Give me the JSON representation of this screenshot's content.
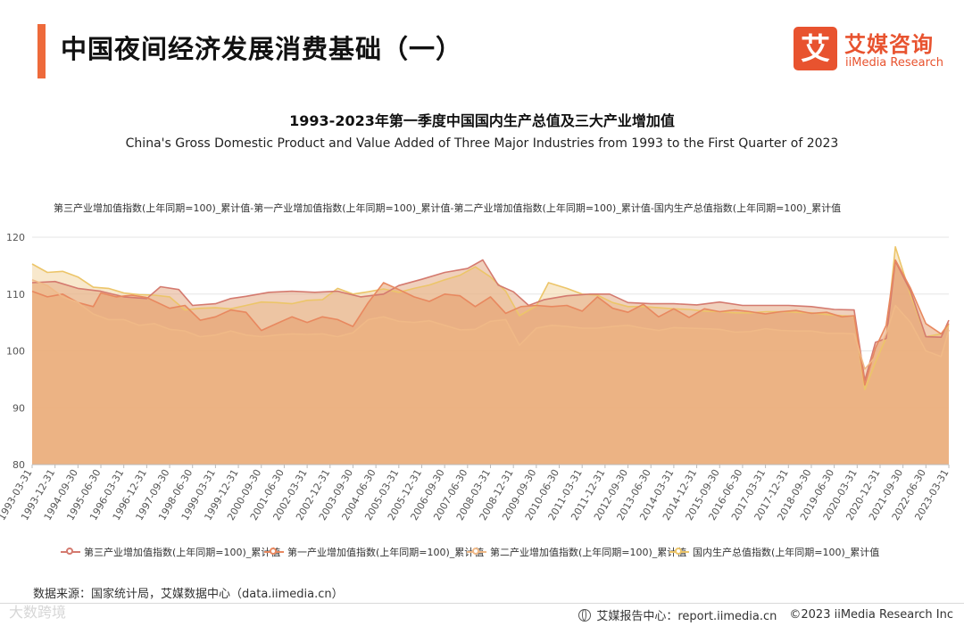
{
  "header": {
    "title": "中国夜间经济发展消费基础（一）",
    "logo_char": "艾",
    "logo_cn": "艾媒咨询",
    "logo_en": "iiMedia Research",
    "brand_color": "#e8532f"
  },
  "chart_data": {
    "type": "area",
    "title": "1993-2023年第一季度中国国内生产总值及三大产业增加值",
    "subtitle": "China's Gross Domestic Product and Value Added of Three Major Industries from 1993 to the First Quarter of 2023",
    "series_header": "第三产业增加值指数(上年同期=100)_累计值-第一产业增加值指数(上年同期=100)_累计值-第二产业增加值指数(上年同期=100)_累计值-国内生产总值指数(上年同期=100)_累计值",
    "ylim": [
      80,
      120
    ],
    "yticks": [
      80,
      90,
      100,
      110,
      120
    ],
    "xlim": [
      1993.0,
      2023.0
    ],
    "grid": true,
    "legend_position": "bottom",
    "x_tick_labels": [
      "1993-03-31",
      "1993-12-31",
      "1994-09-30",
      "1995-06-30",
      "1996-03-31",
      "1996-12-31",
      "1997-09-30",
      "1998-06-30",
      "1999-03-31",
      "1999-12-31",
      "2000-09-30",
      "2001-06-30",
      "2002-03-31",
      "2002-12-31",
      "2003-09-30",
      "2004-06-30",
      "2005-03-31",
      "2005-12-31",
      "2006-09-30",
      "2007-06-30",
      "2008-03-31",
      "2008-12-31",
      "2009-09-30",
      "2010-06-30",
      "2011-03-31",
      "2011-12-31",
      "2012-09-30",
      "2013-06-30",
      "2014-03-31",
      "2014-12-31",
      "2015-09-30",
      "2016-06-30",
      "2017-03-31",
      "2017-12-31",
      "2018-09-30",
      "2019-06-30",
      "2020-03-31",
      "2020-12-31",
      "2021-09-30",
      "2022-06-30",
      "2023-03-31"
    ],
    "series": [
      {
        "name": "第三产业增加值指数(上年同期=100)_累计值",
        "color": "#d47a6f",
        "points": [
          [
            1993.0,
            112.0
          ],
          [
            1993.75,
            112.2
          ],
          [
            1994.5,
            111.0
          ],
          [
            1995.25,
            110.5
          ],
          [
            1996.0,
            109.5
          ],
          [
            1996.75,
            109.2
          ],
          [
            1997.2,
            111.3
          ],
          [
            1997.8,
            110.8
          ],
          [
            1998.25,
            108.0
          ],
          [
            1999.0,
            108.3
          ],
          [
            1999.5,
            109.2
          ],
          [
            2000.0,
            109.6
          ],
          [
            2000.75,
            110.3
          ],
          [
            2001.5,
            110.5
          ],
          [
            2002.25,
            110.3
          ],
          [
            2003.0,
            110.5
          ],
          [
            2003.75,
            109.5
          ],
          [
            2004.5,
            110.0
          ],
          [
            2005.0,
            111.5
          ],
          [
            2005.75,
            112.6
          ],
          [
            2006.5,
            113.8
          ],
          [
            2007.25,
            114.5
          ],
          [
            2007.75,
            116.0
          ],
          [
            2008.25,
            111.6
          ],
          [
            2008.75,
            110.4
          ],
          [
            2009.25,
            108.0
          ],
          [
            2009.75,
            109.0
          ],
          [
            2010.5,
            109.7
          ],
          [
            2011.25,
            110.0
          ],
          [
            2011.9,
            110.0
          ],
          [
            2012.5,
            108.5
          ],
          [
            2013.25,
            108.3
          ],
          [
            2014.0,
            108.3
          ],
          [
            2014.75,
            108.1
          ],
          [
            2015.5,
            108.6
          ],
          [
            2016.25,
            108.0
          ],
          [
            2017.0,
            108.0
          ],
          [
            2017.75,
            108.0
          ],
          [
            2018.5,
            107.8
          ],
          [
            2019.25,
            107.3
          ],
          [
            2019.9,
            107.2
          ],
          [
            2020.25,
            94.8
          ],
          [
            2020.6,
            101.5
          ],
          [
            2020.95,
            102.2
          ],
          [
            2021.25,
            115.8
          ],
          [
            2021.75,
            110.5
          ],
          [
            2022.25,
            102.5
          ],
          [
            2022.75,
            102.4
          ],
          [
            2023.0,
            105.4
          ]
        ]
      },
      {
        "name": "第一产业增加值指数(上年同期=100)_累计值",
        "color": "#e8885f",
        "points": [
          [
            1993.0,
            110.5
          ],
          [
            1993.5,
            109.5
          ],
          [
            1994.0,
            110.0
          ],
          [
            1994.5,
            108.5
          ],
          [
            1995.0,
            107.8
          ],
          [
            1995.25,
            110.2
          ],
          [
            1995.75,
            109.5
          ],
          [
            1996.25,
            109.8
          ],
          [
            1996.75,
            109.4
          ],
          [
            1997.5,
            107.5
          ],
          [
            1998.0,
            108.0
          ],
          [
            1998.5,
            105.4
          ],
          [
            1999.0,
            106.0
          ],
          [
            1999.5,
            107.2
          ],
          [
            2000.0,
            106.8
          ],
          [
            2000.5,
            103.6
          ],
          [
            2001.0,
            104.8
          ],
          [
            2001.5,
            106.0
          ],
          [
            2002.0,
            105.0
          ],
          [
            2002.5,
            106.0
          ],
          [
            2003.0,
            105.5
          ],
          [
            2003.5,
            104.3
          ],
          [
            2004.0,
            108.5
          ],
          [
            2004.5,
            112.0
          ],
          [
            2005.0,
            110.8
          ],
          [
            2005.5,
            109.5
          ],
          [
            2006.0,
            108.7
          ],
          [
            2006.5,
            110.0
          ],
          [
            2007.0,
            109.7
          ],
          [
            2007.5,
            107.8
          ],
          [
            2008.0,
            109.5
          ],
          [
            2008.5,
            106.6
          ],
          [
            2009.0,
            107.8
          ],
          [
            2009.5,
            108.0
          ],
          [
            2010.0,
            107.8
          ],
          [
            2010.5,
            108.0
          ],
          [
            2011.0,
            107.0
          ],
          [
            2011.5,
            109.5
          ],
          [
            2012.0,
            107.5
          ],
          [
            2012.5,
            106.8
          ],
          [
            2013.0,
            108.2
          ],
          [
            2013.5,
            106.0
          ],
          [
            2014.0,
            107.4
          ],
          [
            2014.5,
            105.9
          ],
          [
            2015.0,
            107.4
          ],
          [
            2015.5,
            106.9
          ],
          [
            2016.0,
            107.2
          ],
          [
            2016.5,
            106.9
          ],
          [
            2017.0,
            106.5
          ],
          [
            2017.5,
            106.9
          ],
          [
            2018.0,
            107.1
          ],
          [
            2018.5,
            106.6
          ],
          [
            2019.0,
            106.8
          ],
          [
            2019.5,
            106.0
          ],
          [
            2019.9,
            106.2
          ],
          [
            2020.25,
            94.0
          ],
          [
            2020.6,
            100.5
          ],
          [
            2020.95,
            104.5
          ],
          [
            2021.25,
            116.0
          ],
          [
            2021.75,
            111.0
          ],
          [
            2022.25,
            104.8
          ],
          [
            2022.75,
            103.0
          ],
          [
            2023.0,
            104.8
          ]
        ]
      },
      {
        "name": "第二产业增加值指数(上年同期=100)_累计值",
        "color": "#f0b987",
        "points": [
          [
            1993.0,
            112.5
          ],
          [
            1993.5,
            111.5
          ],
          [
            1994.0,
            109.5
          ],
          [
            1994.5,
            108.5
          ],
          [
            1995.0,
            106.5
          ],
          [
            1995.5,
            105.5
          ],
          [
            1996.0,
            105.5
          ],
          [
            1996.5,
            104.5
          ],
          [
            1997.0,
            104.8
          ],
          [
            1997.5,
            103.8
          ],
          [
            1998.0,
            103.5
          ],
          [
            1998.5,
            102.5
          ],
          [
            1999.0,
            102.8
          ],
          [
            1999.5,
            103.5
          ],
          [
            2000.0,
            102.8
          ],
          [
            2000.5,
            102.5
          ],
          [
            2001.0,
            102.8
          ],
          [
            2001.5,
            103.0
          ],
          [
            2002.0,
            102.9
          ],
          [
            2002.5,
            103.0
          ],
          [
            2003.0,
            102.5
          ],
          [
            2003.5,
            103.2
          ],
          [
            2004.0,
            105.5
          ],
          [
            2004.5,
            106.0
          ],
          [
            2005.0,
            105.2
          ],
          [
            2005.5,
            105.0
          ],
          [
            2006.0,
            105.3
          ],
          [
            2006.5,
            104.5
          ],
          [
            2007.0,
            103.7
          ],
          [
            2007.5,
            103.8
          ],
          [
            2008.0,
            105.2
          ],
          [
            2008.5,
            105.5
          ],
          [
            2008.95,
            101.0
          ],
          [
            2009.5,
            104.0
          ],
          [
            2010.0,
            104.5
          ],
          [
            2010.5,
            104.3
          ],
          [
            2011.0,
            104.0
          ],
          [
            2011.5,
            104.0
          ],
          [
            2012.0,
            104.3
          ],
          [
            2012.5,
            104.5
          ],
          [
            2013.0,
            104.0
          ],
          [
            2013.5,
            103.6
          ],
          [
            2014.0,
            104.1
          ],
          [
            2014.5,
            104.0
          ],
          [
            2015.0,
            103.9
          ],
          [
            2015.5,
            103.8
          ],
          [
            2016.0,
            103.3
          ],
          [
            2016.5,
            103.4
          ],
          [
            2017.0,
            103.9
          ],
          [
            2017.5,
            103.6
          ],
          [
            2018.0,
            103.5
          ],
          [
            2018.5,
            103.5
          ],
          [
            2019.0,
            103.1
          ],
          [
            2019.5,
            103.1
          ],
          [
            2019.9,
            103.0
          ],
          [
            2020.25,
            96.8
          ],
          [
            2020.6,
            99.0
          ],
          [
            2020.95,
            103.0
          ],
          [
            2021.25,
            108.0
          ],
          [
            2021.75,
            105.0
          ],
          [
            2022.25,
            100.0
          ],
          [
            2022.75,
            99.0
          ],
          [
            2023.0,
            103.7
          ]
        ]
      },
      {
        "name": "国内生产总值指数(上年同期=100)_累计值",
        "color": "#ecc569",
        "points": [
          [
            1993.0,
            115.3
          ],
          [
            1993.5,
            113.8
          ],
          [
            1994.0,
            114.0
          ],
          [
            1994.5,
            113.0
          ],
          [
            1995.0,
            111.2
          ],
          [
            1995.5,
            111.0
          ],
          [
            1996.0,
            110.2
          ],
          [
            1996.5,
            109.9
          ],
          [
            1997.0,
            109.8
          ],
          [
            1997.5,
            109.5
          ],
          [
            1998.0,
            107.2
          ],
          [
            1998.5,
            107.5
          ],
          [
            1999.0,
            107.6
          ],
          [
            1999.5,
            107.4
          ],
          [
            2000.0,
            108.0
          ],
          [
            2000.5,
            108.6
          ],
          [
            2001.0,
            108.5
          ],
          [
            2001.5,
            108.3
          ],
          [
            2002.0,
            108.9
          ],
          [
            2002.5,
            109.0
          ],
          [
            2003.0,
            111.0
          ],
          [
            2003.5,
            110.0
          ],
          [
            2004.0,
            110.4
          ],
          [
            2004.5,
            110.9
          ],
          [
            2005.0,
            110.3
          ],
          [
            2005.5,
            111.0
          ],
          [
            2006.0,
            111.6
          ],
          [
            2006.5,
            112.5
          ],
          [
            2007.0,
            113.3
          ],
          [
            2007.5,
            114.8
          ],
          [
            2008.0,
            113.0
          ],
          [
            2008.5,
            110.5
          ],
          [
            2008.95,
            106.2
          ],
          [
            2009.5,
            107.9
          ],
          [
            2009.9,
            112.0
          ],
          [
            2010.5,
            111.0
          ],
          [
            2011.0,
            110.0
          ],
          [
            2011.5,
            109.8
          ],
          [
            2012.0,
            108.5
          ],
          [
            2012.5,
            107.8
          ],
          [
            2013.0,
            107.8
          ],
          [
            2013.5,
            107.6
          ],
          [
            2014.0,
            107.4
          ],
          [
            2014.5,
            107.3
          ],
          [
            2015.0,
            107.0
          ],
          [
            2015.5,
            106.9
          ],
          [
            2016.0,
            106.7
          ],
          [
            2016.5,
            106.7
          ],
          [
            2017.0,
            106.9
          ],
          [
            2017.5,
            106.9
          ],
          [
            2018.0,
            106.8
          ],
          [
            2018.5,
            106.7
          ],
          [
            2019.0,
            106.4
          ],
          [
            2019.5,
            106.2
          ],
          [
            2019.9,
            106.1
          ],
          [
            2020.25,
            93.2
          ],
          [
            2020.6,
            98.0
          ],
          [
            2020.95,
            102.3
          ],
          [
            2021.25,
            118.3
          ],
          [
            2021.75,
            109.8
          ],
          [
            2022.25,
            102.5
          ],
          [
            2022.75,
            103.0
          ],
          [
            2023.0,
            104.5
          ]
        ]
      }
    ]
  },
  "source": "数据来源：国家统计局，艾媒数据中心（data.iimedia.cn）",
  "footer": {
    "report_center": "艾媒报告中心：report.iimedia.cn",
    "copyright": "©2023  iiMedia Research  Inc"
  },
  "watermark": "大数跨境"
}
